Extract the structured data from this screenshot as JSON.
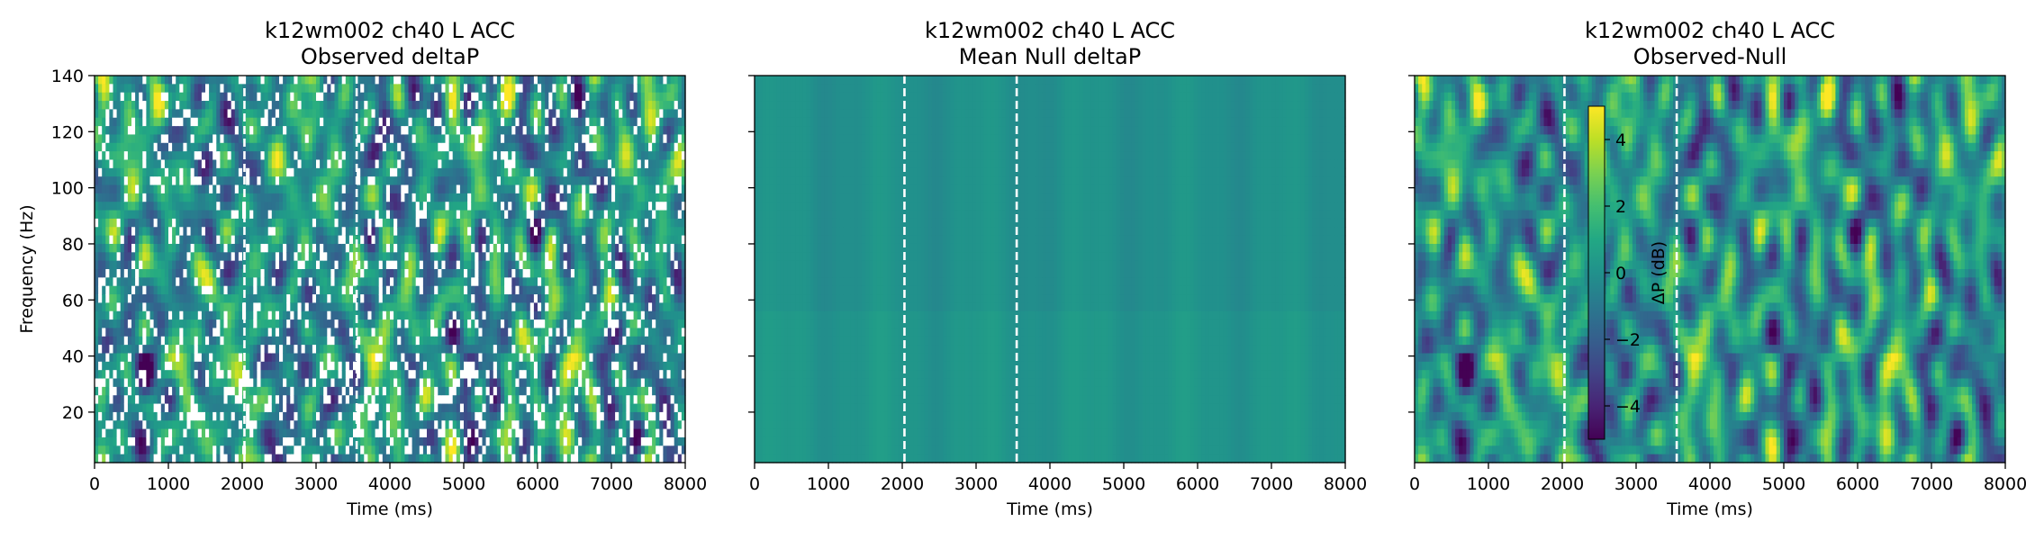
{
  "chart_data": [
    {
      "type": "heatmap",
      "title": "k12wm002 ch40 L ACC",
      "subtitle": "Observed deltaP",
      "xlabel": "Time (ms)",
      "ylabel": "Frequency (Hz)",
      "xlim": [
        0,
        8000
      ],
      "ylim": [
        2,
        140
      ],
      "xticks": [
        0,
        1000,
        2000,
        3000,
        4000,
        5000,
        6000,
        7000,
        8000
      ],
      "yticks": [
        20,
        40,
        60,
        80,
        100,
        120,
        140
      ],
      "colormap": "viridis",
      "masked_nonsignificant": true,
      "event_lines_ms": [
        2030,
        3550
      ]
    },
    {
      "type": "heatmap",
      "title": "k12wm002 ch40 L ACC",
      "subtitle": "Mean Null deltaP",
      "xlabel": "Time (ms)",
      "ylabel": "",
      "xlim": [
        0,
        8000
      ],
      "ylim": [
        2,
        140
      ],
      "xticks": [
        0,
        1000,
        2000,
        3000,
        4000,
        5000,
        6000,
        7000,
        8000
      ],
      "yticks": [
        20,
        40,
        60,
        80,
        100,
        120,
        140
      ],
      "colormap": "viridis",
      "event_lines_ms": [
        2030,
        3550
      ]
    },
    {
      "type": "heatmap",
      "title": "k12wm002 ch40 L ACC",
      "subtitle": "Observed-Null",
      "xlabel": "Time (ms)",
      "ylabel": "",
      "xlim": [
        0,
        8000
      ],
      "ylim": [
        2,
        140
      ],
      "xticks": [
        0,
        1000,
        2000,
        3000,
        4000,
        5000,
        6000,
        7000,
        8000
      ],
      "yticks": [
        20,
        40,
        60,
        80,
        100,
        120,
        140
      ],
      "colormap": "viridis",
      "event_lines_ms": [
        2030,
        3550
      ],
      "colorbar": {
        "label": "ΔP (dB)",
        "range": [
          -5,
          5
        ],
        "ticks": [
          -4,
          -2,
          0,
          2,
          4
        ],
        "tick_labels": [
          "−4",
          "−2",
          "0",
          "2",
          "4"
        ]
      }
    }
  ]
}
